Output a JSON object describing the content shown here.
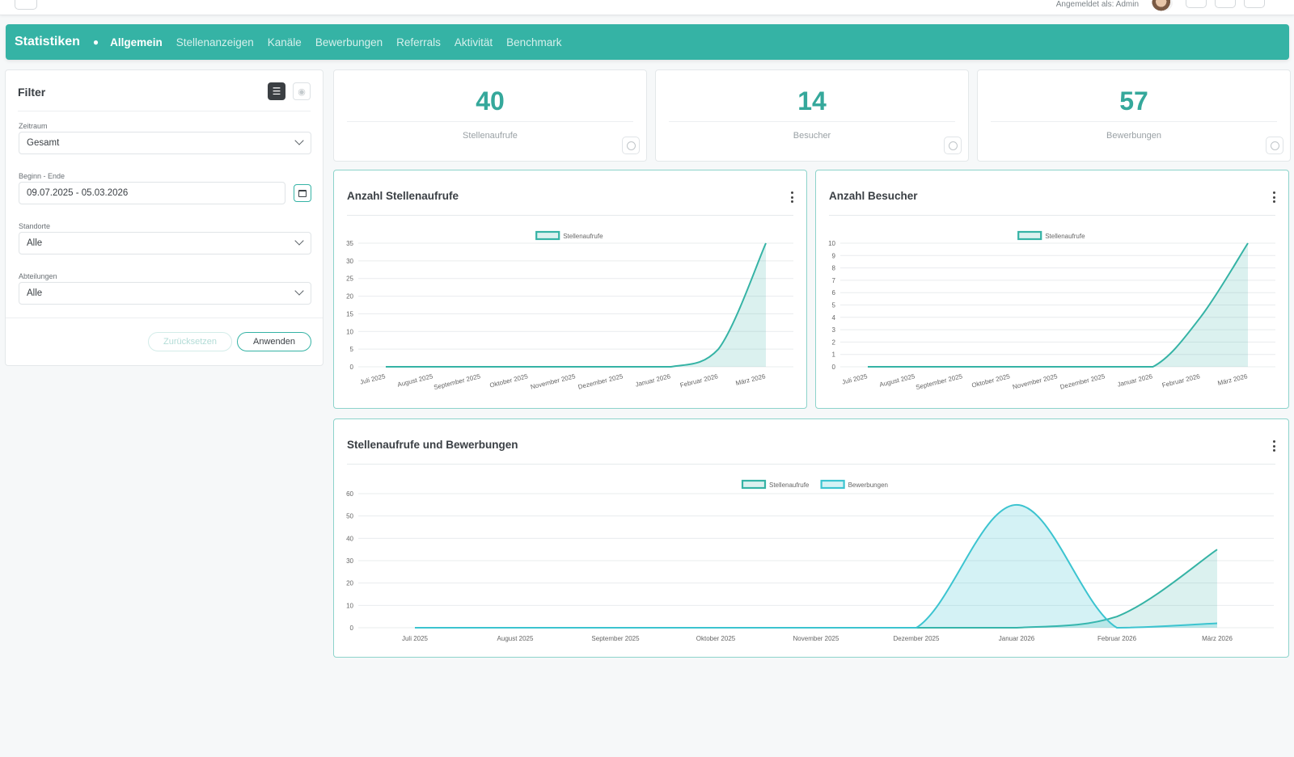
{
  "topbar": {
    "login_text": "Angemeldet als: Admin"
  },
  "nav": {
    "title": "Statistiken",
    "items": [
      {
        "label": "Allgemein",
        "active": true
      },
      {
        "label": "Stellenanzeigen",
        "active": false
      },
      {
        "label": "Kanäle",
        "active": false
      },
      {
        "label": "Bewerbungen",
        "active": false
      },
      {
        "label": "Referrals",
        "active": false
      },
      {
        "label": "Aktivität",
        "active": false
      },
      {
        "label": "Benchmark",
        "active": false
      }
    ]
  },
  "filter": {
    "title": "Filter",
    "zeitraum_label": "Zeitraum",
    "zeitraum_value": "Gesamt",
    "range_label": "Beginn - Ende",
    "range_value": "09.07.2025 - 05.03.2026",
    "standorte_label": "Standorte",
    "standorte_value": "Alle",
    "abteilungen_label": "Abteilungen",
    "abteilungen_value": "Alle",
    "reset_label": "Zurücksetzen",
    "apply_label": "Anwenden"
  },
  "stats": [
    {
      "value": "40",
      "label": "Stellenaufrufe"
    },
    {
      "value": "14",
      "label": "Besucher"
    },
    {
      "value": "57",
      "label": "Bewerbungen"
    }
  ],
  "colors": {
    "teal": "#35b3a5",
    "teal_fill": "rgba(53,179,165,0.18)",
    "cyan": "#3cc4d0",
    "cyan_fill": "rgba(60,196,208,0.22)"
  },
  "chart_data": [
    {
      "type": "area",
      "title": "Anzahl Stellenaufrufe",
      "categories": [
        "Juli 2025",
        "August 2025",
        "September 2025",
        "Oktober 2025",
        "November 2025",
        "Dezember 2025",
        "Januar 2026",
        "Februar 2026",
        "März 2026"
      ],
      "series": [
        {
          "name": "Stellenaufrufe",
          "values": [
            0,
            0,
            0,
            0,
            0,
            0,
            0,
            5,
            35
          ]
        }
      ],
      "ylim": [
        0,
        35
      ],
      "yticks": [
        0,
        5,
        10,
        15,
        20,
        25,
        30,
        35
      ],
      "legend": "top-center",
      "grid": true
    },
    {
      "type": "area",
      "title": "Anzahl Besucher",
      "categories": [
        "Juli 2025",
        "August 2025",
        "September 2025",
        "Oktober 2025",
        "November 2025",
        "Dezember 2025",
        "Januar 2026",
        "Februar 2026",
        "März 2026"
      ],
      "series": [
        {
          "name": "Stellenaufrufe",
          "values": [
            0,
            0,
            0,
            0,
            0,
            0,
            0,
            4,
            10
          ]
        }
      ],
      "ylim": [
        0,
        10
      ],
      "yticks": [
        0,
        1,
        2,
        3,
        4,
        5,
        6,
        7,
        8,
        9,
        10
      ],
      "legend": "top-center",
      "grid": true
    },
    {
      "type": "area",
      "title": "Stellenaufrufe und Bewerbungen",
      "categories": [
        "Juli 2025",
        "August 2025",
        "September 2025",
        "Oktober 2025",
        "November 2025",
        "Dezember 2025",
        "Januar 2026",
        "Februar 2026",
        "März 2026"
      ],
      "series": [
        {
          "name": "Stellenaufrufe",
          "values": [
            0,
            0,
            0,
            0,
            0,
            0,
            0,
            5,
            35
          ]
        },
        {
          "name": "Bewerbungen",
          "values": [
            0,
            0,
            0,
            0,
            0,
            0,
            55,
            0,
            2
          ]
        }
      ],
      "ylim": [
        0,
        60
      ],
      "yticks": [
        0,
        10,
        20,
        30,
        40,
        50,
        60
      ],
      "legend": "top-center",
      "grid": true
    }
  ]
}
